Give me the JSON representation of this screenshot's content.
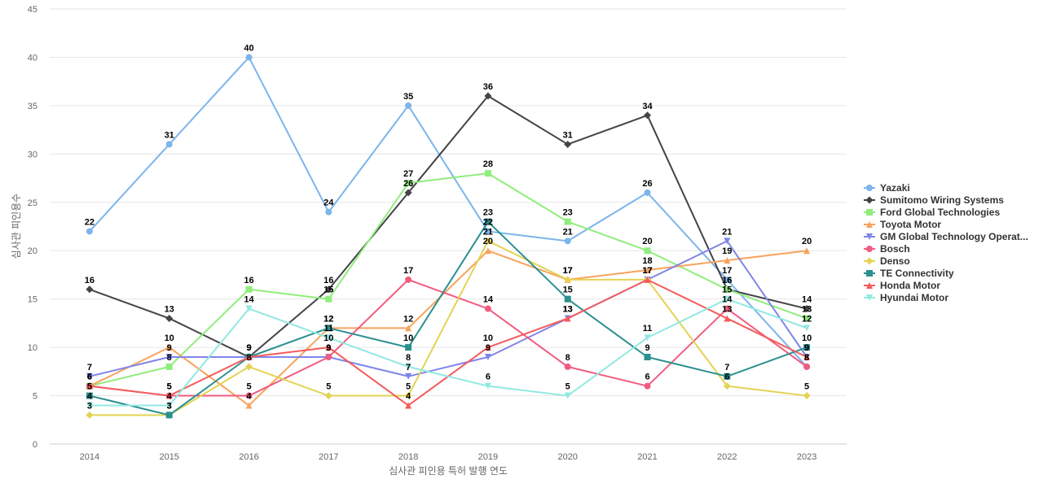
{
  "chart_data": {
    "type": "line",
    "title": "",
    "xlabel": "심사관 피인용 특허 발행 연도",
    "ylabel": "심사관 피인용수",
    "x": [
      "2014",
      "2015",
      "2016",
      "2017",
      "2018",
      "2019",
      "2020",
      "2021",
      "2022",
      "2023"
    ],
    "ylim": [
      0,
      45
    ],
    "yticks": [
      0,
      5,
      10,
      15,
      20,
      25,
      30,
      35,
      40,
      45
    ],
    "grid": true,
    "legend_position": "right",
    "series": [
      {
        "name": "Yazaki",
        "color": "#7cb5ec",
        "marker": "circle",
        "values": [
          22,
          31,
          40,
          24,
          35,
          22,
          21,
          26,
          17,
          8
        ]
      },
      {
        "name": "Sumitomo Wiring Systems",
        "color": "#434348",
        "marker": "diamond",
        "values": [
          16,
          13,
          9,
          16,
          26,
          36,
          31,
          34,
          16,
          14
        ]
      },
      {
        "name": "Ford Global Technologies",
        "color": "#90ed7d",
        "marker": "square",
        "values": [
          6,
          8,
          16,
          15,
          27,
          28,
          23,
          20,
          16,
          13
        ]
      },
      {
        "name": "Toyota Motor",
        "color": "#f7a35c",
        "marker": "triangle",
        "values": [
          6,
          10,
          4,
          12,
          12,
          20,
          17,
          18,
          19,
          20
        ]
      },
      {
        "name": "GM Global Technology Operat...",
        "color": "#8085e9",
        "marker": "triangle-down",
        "values": [
          7,
          9,
          9,
          9,
          7,
          9,
          13,
          17,
          21,
          9
        ]
      },
      {
        "name": "Bosch",
        "color": "#f15c80",
        "marker": "circle",
        "values": [
          6,
          5,
          5,
          9,
          17,
          14,
          8,
          6,
          14,
          8
        ]
      },
      {
        "name": "Denso",
        "color": "#e4d354",
        "marker": "diamond",
        "values": [
          3,
          3,
          8,
          5,
          5,
          21,
          17,
          17,
          6,
          5
        ]
      },
      {
        "name": "TE Connectivity",
        "color": "#2b908f",
        "marker": "square",
        "values": [
          5,
          3,
          9,
          12,
          10,
          23,
          15,
          9,
          7,
          10
        ]
      },
      {
        "name": "Honda Motor",
        "color": "#f45b5b",
        "marker": "triangle",
        "values": [
          6,
          5,
          9,
          10,
          4,
          10,
          13,
          17,
          13,
          9
        ]
      },
      {
        "name": "Hyundai Motor",
        "color": "#91e8e1",
        "marker": "triangle-down",
        "values": [
          4,
          4,
          14,
          11,
          8,
          6,
          5,
          11,
          15,
          12
        ]
      }
    ]
  }
}
